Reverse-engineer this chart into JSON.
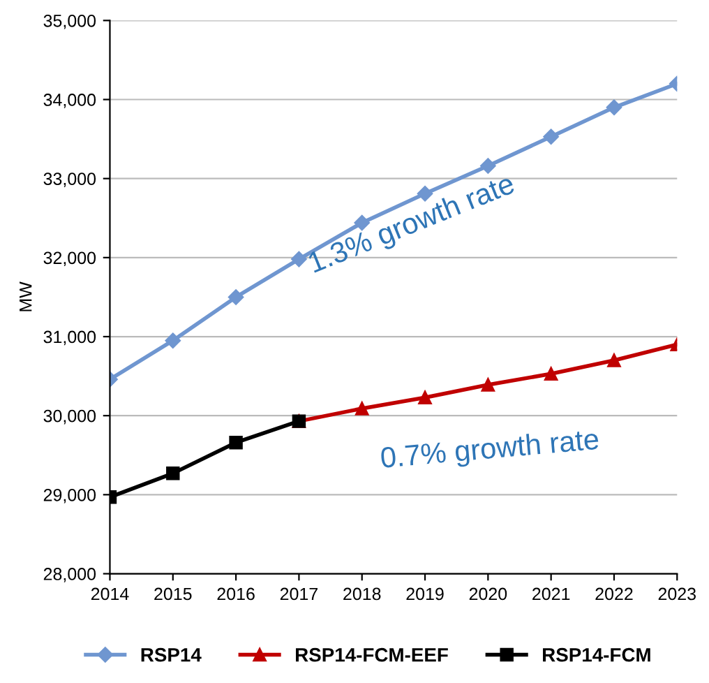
{
  "chart_data": {
    "type": "line",
    "ylabel": "MW",
    "categories": [
      "2014",
      "2015",
      "2016",
      "2017",
      "2018",
      "2019",
      "2020",
      "2021",
      "2022",
      "2023"
    ],
    "series": [
      {
        "name": "RSP14",
        "color": "#6f96d0",
        "marker": "diamond",
        "values": [
          30460,
          30950,
          31500,
          31980,
          32440,
          32810,
          33160,
          33530,
          33900,
          34200
        ]
      },
      {
        "name": "RSP14-FCM-EEF",
        "color": "#c00000",
        "marker": "triangle",
        "values": [
          null,
          null,
          null,
          29930,
          30090,
          30230,
          30390,
          30530,
          30700,
          30900
        ]
      },
      {
        "name": "RSP14-FCM",
        "color": "#000000",
        "marker": "square",
        "values": [
          28970,
          29270,
          29660,
          29930,
          null,
          null,
          null,
          null,
          null,
          null
        ]
      }
    ],
    "ylim": [
      28000,
      35000
    ],
    "yticks": [
      {
        "value": 28000,
        "label": "28,000"
      },
      {
        "value": 29000,
        "label": "29,000"
      },
      {
        "value": 30000,
        "label": "30,000"
      },
      {
        "value": 31000,
        "label": "31,000"
      },
      {
        "value": 32000,
        "label": "32,000"
      },
      {
        "value": 33000,
        "label": "33,000"
      },
      {
        "value": 34000,
        "label": "34,000"
      },
      {
        "value": 35000,
        "label": "35,000"
      }
    ],
    "grid": "y",
    "legend": "bottom",
    "line_style": "solid",
    "annotations": [
      "1.3% growth rate",
      "0.7% growth rate"
    ]
  }
}
